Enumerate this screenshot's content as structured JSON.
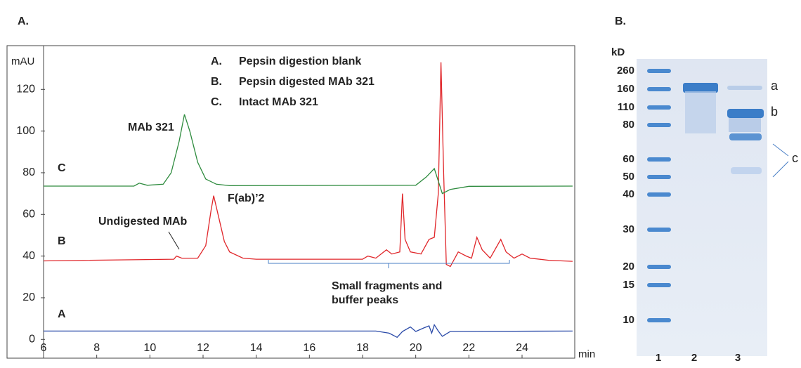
{
  "panels": {
    "left": "A.",
    "right": "B."
  },
  "chart_data": {
    "type": "line",
    "ylabel": "mAU",
    "xlabel": "min",
    "xlim": [
      6,
      26
    ],
    "xticks": [
      6,
      8,
      10,
      12,
      14,
      16,
      18,
      20,
      22,
      24
    ],
    "ylim": [
      -9,
      141
    ],
    "yticks": [
      0,
      20,
      40,
      60,
      80,
      100,
      120
    ],
    "legend_keys": [
      "A.",
      "B.",
      "C."
    ],
    "series": [
      {
        "name": "Pepsin digestion blank",
        "color": "#2a4aa8",
        "x": [
          6,
          18.5,
          19,
          19.3,
          19.5,
          19.8,
          20,
          20.3,
          20.5,
          20.6,
          20.7,
          20.85,
          21,
          21.3,
          25.9
        ],
        "values": [
          4,
          4,
          3,
          1,
          3.8,
          6,
          3.8,
          5.5,
          6.5,
          3,
          7,
          4,
          1.5,
          3.8,
          4
        ]
      },
      {
        "name": "Pepsin digested MAb 321",
        "color": "#e0262a",
        "x": [
          6,
          10.9,
          11,
          11.2,
          11.8,
          12.1,
          12.3,
          12.4,
          12.6,
          12.8,
          13,
          13.5,
          14,
          18,
          18.2,
          18.5,
          18.9,
          19.1,
          19.4,
          19.5,
          19.6,
          19.8,
          20.2,
          20.5,
          20.7,
          20.85,
          20.95,
          21.05,
          21.15,
          21.3,
          21.6,
          21.9,
          22.1,
          22.3,
          22.5,
          22.8,
          23.2,
          23.4,
          23.7,
          24,
          24.3,
          25,
          25.9
        ],
        "values": [
          37.7,
          38.5,
          40,
          39,
          39,
          45,
          62,
          69,
          58,
          47,
          42,
          39,
          38.5,
          38.5,
          40,
          39,
          43,
          41,
          42,
          70,
          48,
          42,
          41,
          48,
          49,
          70,
          133,
          80,
          36,
          35,
          42,
          40,
          39,
          49,
          43,
          39,
          48,
          42,
          39,
          41,
          39,
          38,
          37.5
        ]
      },
      {
        "name": "Intact MAb 321",
        "color": "#2e8b3e",
        "x": [
          6,
          9.4,
          9.6,
          9.9,
          10.5,
          10.8,
          11.1,
          11.3,
          11.5,
          11.8,
          12.1,
          12.5,
          13,
          20,
          20.4,
          20.7,
          20.85,
          21,
          21.3,
          22,
          25.9
        ],
        "values": [
          73.6,
          73.6,
          75,
          74,
          74.5,
          80,
          95,
          108,
          100,
          85,
          77,
          74.5,
          73.8,
          74,
          78,
          82,
          76,
          70,
          72,
          73.5,
          73.6
        ]
      }
    ],
    "annotations": [
      "A",
      "B",
      "C",
      "MAb 321",
      "F(ab)’2",
      "Undigested MAb",
      "Small fragments and",
      "buffer peaks"
    ]
  },
  "gel": {
    "unit": "kD",
    "markers": [
      "260",
      "160",
      "110",
      "80",
      "60",
      "50",
      "40",
      "30",
      "20",
      "15",
      "10"
    ],
    "lanes": [
      "1",
      "2",
      "3"
    ],
    "bands": [
      "a",
      "b",
      "c"
    ]
  }
}
